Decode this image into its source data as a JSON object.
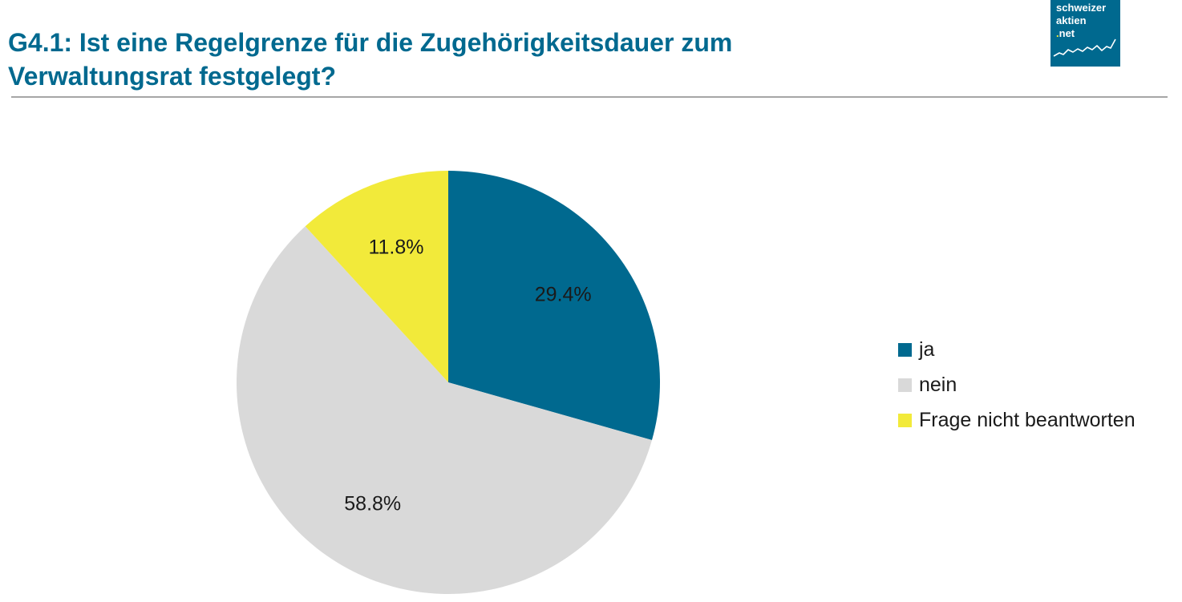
{
  "header": {
    "title_line1": "G4.1: Ist eine Regelgrenze für die Zugehörigkeitsdauer zum",
    "title_line2": "Verwaltungsrat festgelegt?"
  },
  "logo": {
    "line1": "schweizer",
    "line2": "aktien",
    "line3_dot": ".",
    "line3_rest": "net",
    "icon": "stock-line-icon"
  },
  "colors": {
    "brand": "#00698f",
    "title": "#00698f",
    "rule": "#a6a6a6",
    "ja": "#00698f",
    "nein": "#d9d9d9",
    "frage": "#f2ea3a"
  },
  "chart_data": {
    "type": "pie",
    "title": "G4.1: Ist eine Regelgrenze für die Zugehörigkeitsdauer zum Verwaltungsrat festgelegt?",
    "start_angle_deg": 0,
    "direction": "clockwise",
    "legend_position": "right",
    "slices": [
      {
        "name": "ja",
        "value": 29.4,
        "label": "29.4%",
        "color": "#00698f"
      },
      {
        "name": "nein",
        "value": 58.8,
        "label": "58.8%",
        "color": "#d9d9d9"
      },
      {
        "name": "Frage nicht beantworten",
        "value": 11.8,
        "label": "11.8%",
        "color": "#f2ea3a"
      }
    ]
  }
}
